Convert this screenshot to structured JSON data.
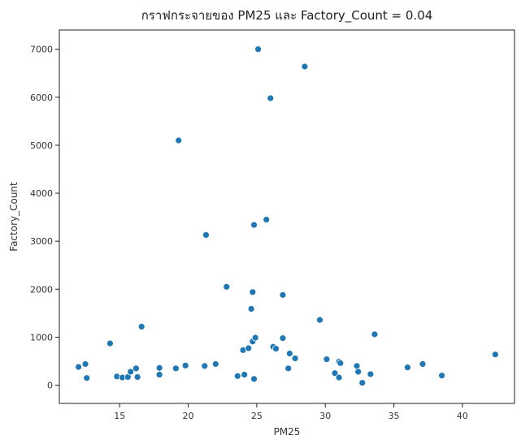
{
  "chart_data": {
    "type": "scatter",
    "title": "กราฟกระจายของ PM25 และ Factory_Count = 0.04",
    "xlabel": "PM25",
    "ylabel": "Factory_Count",
    "xlim": [
      10.6,
      43.8
    ],
    "ylim": [
      -380,
      7400
    ],
    "xticks": [
      15,
      20,
      25,
      30,
      35,
      40
    ],
    "yticks": [
      0,
      1000,
      2000,
      3000,
      4000,
      5000,
      6000,
      7000
    ],
    "grid": false,
    "point_color": "#1f77b4",
    "points": [
      {
        "x": 12.0,
        "y": 380
      },
      {
        "x": 12.5,
        "y": 440
      },
      {
        "x": 12.6,
        "y": 150
      },
      {
        "x": 14.3,
        "y": 870
      },
      {
        "x": 14.8,
        "y": 180
      },
      {
        "x": 15.2,
        "y": 160
      },
      {
        "x": 15.6,
        "y": 170
      },
      {
        "x": 15.8,
        "y": 280
      },
      {
        "x": 16.2,
        "y": 350
      },
      {
        "x": 16.3,
        "y": 170
      },
      {
        "x": 16.6,
        "y": 1220
      },
      {
        "x": 17.9,
        "y": 360
      },
      {
        "x": 17.9,
        "y": 220
      },
      {
        "x": 19.1,
        "y": 350
      },
      {
        "x": 19.3,
        "y": 5100
      },
      {
        "x": 19.8,
        "y": 410
      },
      {
        "x": 21.2,
        "y": 400
      },
      {
        "x": 21.3,
        "y": 3130
      },
      {
        "x": 22.0,
        "y": 440
      },
      {
        "x": 22.8,
        "y": 2050
      },
      {
        "x": 23.6,
        "y": 190
      },
      {
        "x": 24.0,
        "y": 730
      },
      {
        "x": 24.1,
        "y": 220
      },
      {
        "x": 24.4,
        "y": 770
      },
      {
        "x": 24.6,
        "y": 1590
      },
      {
        "x": 24.7,
        "y": 1940
      },
      {
        "x": 24.7,
        "y": 910
      },
      {
        "x": 24.8,
        "y": 3340
      },
      {
        "x": 24.8,
        "y": 130
      },
      {
        "x": 24.9,
        "y": 990
      },
      {
        "x": 25.1,
        "y": 7000
      },
      {
        "x": 25.7,
        "y": 3450
      },
      {
        "x": 26.0,
        "y": 5980
      },
      {
        "x": 26.2,
        "y": 800
      },
      {
        "x": 26.4,
        "y": 760
      },
      {
        "x": 26.9,
        "y": 980
      },
      {
        "x": 26.9,
        "y": 1880
      },
      {
        "x": 27.3,
        "y": 350
      },
      {
        "x": 27.4,
        "y": 660
      },
      {
        "x": 27.8,
        "y": 560
      },
      {
        "x": 28.5,
        "y": 6640
      },
      {
        "x": 29.6,
        "y": 1360
      },
      {
        "x": 30.1,
        "y": 540
      },
      {
        "x": 30.7,
        "y": 250
      },
      {
        "x": 31.0,
        "y": 160
      },
      {
        "x": 31.0,
        "y": 490
      },
      {
        "x": 31.1,
        "y": 460
      },
      {
        "x": 32.3,
        "y": 400
      },
      {
        "x": 32.4,
        "y": 280
      },
      {
        "x": 32.7,
        "y": 50
      },
      {
        "x": 33.3,
        "y": 230
      },
      {
        "x": 33.6,
        "y": 1060
      },
      {
        "x": 36.0,
        "y": 370
      },
      {
        "x": 37.1,
        "y": 440
      },
      {
        "x": 38.5,
        "y": 200
      },
      {
        "x": 42.4,
        "y": 640
      }
    ]
  }
}
